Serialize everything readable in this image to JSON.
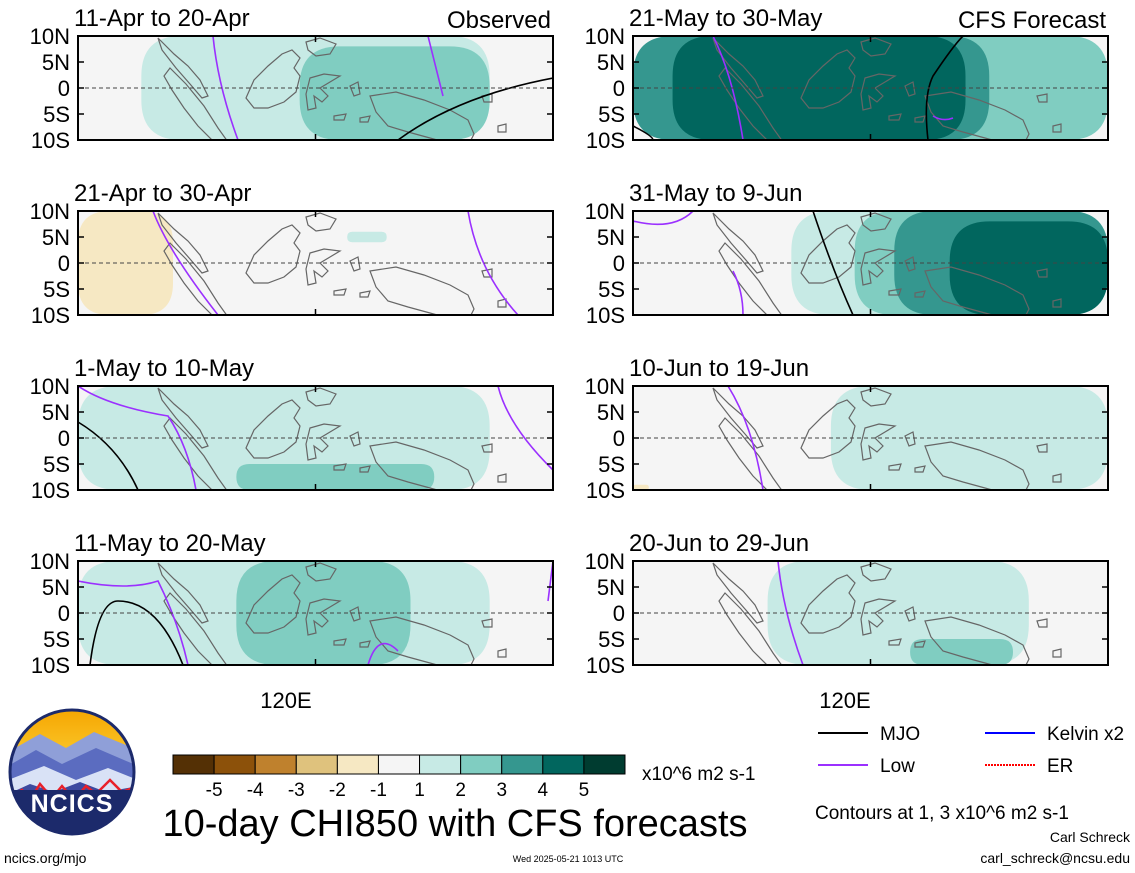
{
  "colors": {
    "land": "#666666",
    "zero_line": "#444444",
    "frame": "#000000",
    "mjo": "#000000",
    "low": "#9b30ff",
    "kelvin": "#0000ff",
    "er": "#ff0000",
    "logo_ring": "#1c2a6b"
  },
  "columns": {
    "left_label": "Observed",
    "right_label": "CFS Forecast"
  },
  "xlabel": "120E",
  "chart_data": {
    "type": "heatmap",
    "variable": "CHI850",
    "units": "x10^6 m2 s-1",
    "lat_ticks": [
      "10N",
      "5N",
      "0",
      "5S",
      "10S"
    ],
    "lat_values": [
      10,
      5,
      0,
      -5,
      -10
    ],
    "lon_tick": "120E",
    "panels": [
      {
        "title": "11-Apr to 20-Apr",
        "column": "Observed",
        "row": 1,
        "tag": "Observed",
        "anomaly_fields": [
          {
            "category": "1 to 2",
            "lon_range": [
              98,
              142
            ],
            "lat_range": [
              -10,
              10
            ]
          },
          {
            "category": "2 to 3",
            "lon_range": [
              118,
              142
            ],
            "lat_range": [
              -10,
              8
            ]
          }
        ],
        "contours": [
          {
            "index": "MJO",
            "value": 1
          },
          {
            "index": "Low",
            "value": 1
          }
        ]
      },
      {
        "title": "21-Apr to 30-Apr",
        "column": "Observed",
        "row": 2,
        "anomaly_fields": [
          {
            "category": "-1 to -2",
            "lon_range": [
              90,
              102
            ],
            "lat_range": [
              -10,
              10
            ]
          },
          {
            "category": "1 to 2",
            "lon_range": [
              124,
              129
            ],
            "lat_range": [
              4,
              6
            ]
          }
        ],
        "contours": [
          {
            "index": "Low",
            "value": 1
          }
        ]
      },
      {
        "title": "1-May to 10-May",
        "column": "Observed",
        "row": 3,
        "anomaly_fields": [
          {
            "category": "1 to 2",
            "lon_range": [
              90,
              142
            ],
            "lat_range": [
              -10,
              10
            ]
          },
          {
            "category": "2 to 3",
            "lon_range": [
              110,
              135
            ],
            "lat_range": [
              -10,
              -5
            ]
          }
        ],
        "contours": [
          {
            "index": "MJO",
            "value": 1
          },
          {
            "index": "Low",
            "value": 1
          }
        ]
      },
      {
        "title": "11-May to 20-May",
        "column": "Observed",
        "row": 4,
        "anomaly_fields": [
          {
            "category": "1 to 2",
            "lon_range": [
              90,
              142
            ],
            "lat_range": [
              -10,
              10
            ]
          },
          {
            "category": "2 to 3",
            "lon_range": [
              110,
              132
            ],
            "lat_range": [
              -10,
              10
            ]
          }
        ],
        "contours": [
          {
            "index": "MJO",
            "value": 1
          },
          {
            "index": "Low",
            "value": 1
          }
        ]
      },
      {
        "title": "21-May to 30-May",
        "column": "CFS Forecast",
        "row": 1,
        "tag": "CFS Forecast",
        "anomaly_fields": [
          {
            "category": "2 to 3",
            "lon_range": [
              90,
              150
            ],
            "lat_range": [
              -10,
              10
            ]
          },
          {
            "category": "3 to 4",
            "lon_range": [
              90,
              135
            ],
            "lat_range": [
              -10,
              10
            ]
          },
          {
            "category": "4 to 5",
            "lon_range": [
              95,
              132
            ],
            "lat_range": [
              -10,
              10
            ]
          }
        ],
        "contours": [
          {
            "index": "MJO",
            "value": 1
          },
          {
            "index": "Low",
            "value": 1
          }
        ]
      },
      {
        "title": "31-May to 9-Jun",
        "column": "CFS Forecast",
        "row": 2,
        "anomaly_fields": [
          {
            "category": "1 to 2",
            "lon_range": [
              110,
              150
            ],
            "lat_range": [
              -10,
              10
            ]
          },
          {
            "category": "2 to 3",
            "lon_range": [
              118,
              150
            ],
            "lat_range": [
              -10,
              10
            ]
          },
          {
            "category": "3 to 4",
            "lon_range": [
              123,
              150
            ],
            "lat_range": [
              -10,
              10
            ]
          },
          {
            "category": "4 to 5",
            "lon_range": [
              130,
              150
            ],
            "lat_range": [
              -10,
              8
            ]
          }
        ],
        "contours": [
          {
            "index": "MJO",
            "value": 1
          },
          {
            "index": "Low",
            "value": 1
          }
        ]
      },
      {
        "title": "10-Jun to 19-Jun",
        "column": "CFS Forecast",
        "row": 3,
        "anomaly_fields": [
          {
            "category": "1 to 2",
            "lon_range": [
              115,
              150
            ],
            "lat_range": [
              -10,
              10
            ]
          },
          {
            "category": "-1 to -2",
            "lon_range": [
              90,
              92
            ],
            "lat_range": [
              -10,
              -9
            ]
          }
        ],
        "contours": [
          {
            "index": "Low",
            "value": 1
          }
        ]
      },
      {
        "title": "20-Jun to 29-Jun",
        "column": "CFS Forecast",
        "row": 4,
        "anomaly_fields": [
          {
            "category": "1 to 2",
            "lon_range": [
              107,
              140
            ],
            "lat_range": [
              -10,
              10
            ]
          },
          {
            "category": "2 to 3",
            "lon_range": [
              125,
              138
            ],
            "lat_range": [
              -10,
              -5
            ]
          }
        ],
        "contours": [
          {
            "index": "Low",
            "value": 1
          }
        ]
      }
    ],
    "colorbar": {
      "ticks": [
        "-5",
        "-4",
        "-3",
        "-2",
        "-1",
        "1",
        "2",
        "3",
        "4",
        "5"
      ],
      "colors": [
        "#543005",
        "#8c510a",
        "#bf812d",
        "#dfc27d",
        "#f6e8c3",
        "#f5f5f5",
        "#c7eae5",
        "#80cdc1",
        "#35978f",
        "#01665e",
        "#003c30"
      ]
    },
    "legend": [
      {
        "name": "MJO",
        "color": "#000000"
      },
      {
        "name": "Kelvin x2",
        "color": "#0000ff"
      },
      {
        "name": "Low",
        "color": "#9b30ff"
      },
      {
        "name": "ER",
        "color": "#ff0000"
      }
    ],
    "legend_position": "bottom-right"
  },
  "footer": {
    "units_label": "x10^6 m2 s-1",
    "main_title": "10-day CHI850 with CFS forecasts",
    "contours_note": "Contours at 1, 3 x10^6 m2 s-1",
    "author": "Carl Schreck",
    "email": "carl_schreck@ncsu.edu",
    "url": "ncics.org/mjo",
    "timestamp": "Wed 2025-05-21 1013 UTC",
    "logo_text": "NCICS"
  }
}
